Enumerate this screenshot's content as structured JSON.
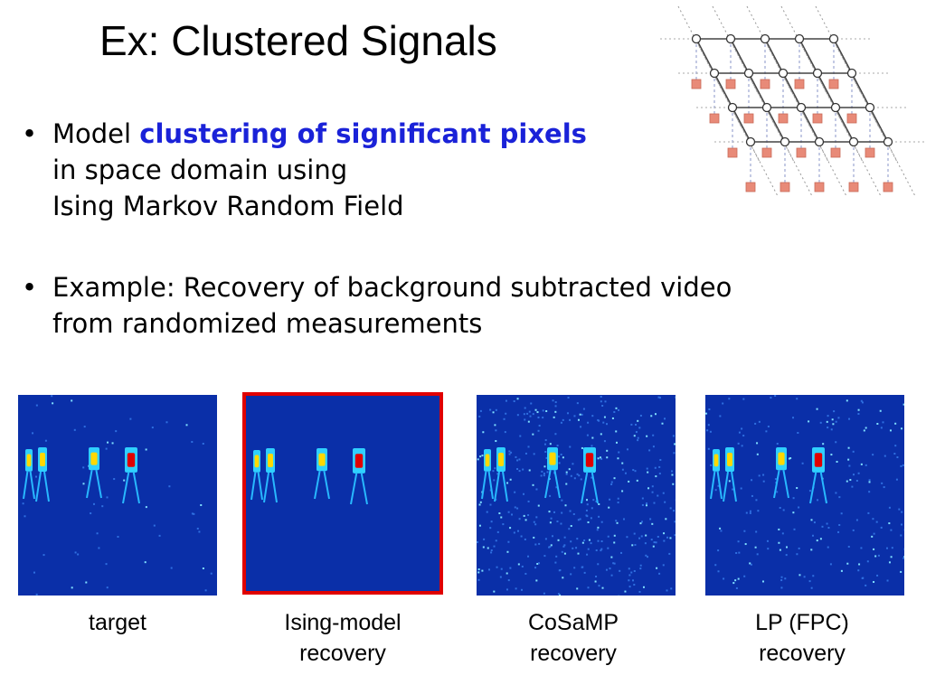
{
  "slide": {
    "title": "Ex: Clustered Signals",
    "bullets": [
      {
        "bullet_char": "•",
        "lines": [
          "Model ",
          "clustering of significant pixels",
          "in space domain using",
          "Ising Markov Random Field"
        ]
      },
      {
        "bullet_char": "•",
        "lines": [
          "Example: Recovery of background subtracted video",
          "from randomized measurements"
        ]
      }
    ],
    "panels": [
      {
        "caption_1": "target",
        "caption_2": "",
        "highlighted": false
      },
      {
        "caption_1": "Ising-model",
        "caption_2": "recovery",
        "highlighted": true
      },
      {
        "caption_1": "CoSaMP",
        "caption_2": "recovery",
        "highlighted": false
      },
      {
        "caption_1": "LP (FPC)",
        "caption_2": "recovery",
        "highlighted": false
      }
    ],
    "colors": {
      "emphasis": "#1a22d8",
      "highlight_border": "#e00000",
      "heatmap_background": "#0a2fa8",
      "lattice_node_square": "#e88a78"
    }
  }
}
